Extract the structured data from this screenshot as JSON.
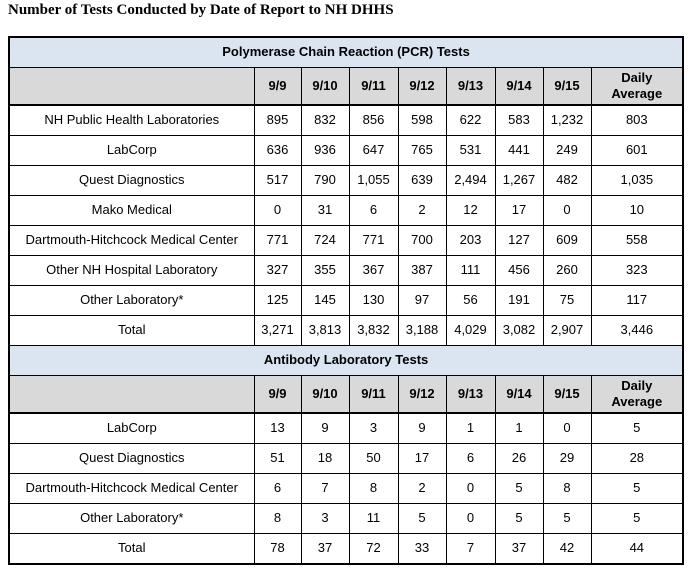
{
  "page_title": "Number of Tests Conducted by Date of Report to NH DHHS",
  "colors": {
    "section_header_bg": "#dbe5f1",
    "column_header_bg": "#d9d9d9",
    "border": "#000000",
    "text": "#000000"
  },
  "columns": [
    "9/9",
    "9/10",
    "9/11",
    "9/12",
    "9/13",
    "9/14",
    "9/15",
    "Daily Average"
  ],
  "sections": [
    {
      "title": "Polymerase Chain Reaction (PCR) Tests",
      "rows": [
        {
          "label": "NH Public Health Laboratories",
          "values": [
            "895",
            "832",
            "856",
            "598",
            "622",
            "583",
            "1,232",
            "803"
          ]
        },
        {
          "label": "LabCorp",
          "values": [
            "636",
            "936",
            "647",
            "765",
            "531",
            "441",
            "249",
            "601"
          ]
        },
        {
          "label": "Quest Diagnostics",
          "values": [
            "517",
            "790",
            "1,055",
            "639",
            "2,494",
            "1,267",
            "482",
            "1,035"
          ]
        },
        {
          "label": "Mako Medical",
          "values": [
            "0",
            "31",
            "6",
            "2",
            "12",
            "17",
            "0",
            "10"
          ]
        },
        {
          "label": "Dartmouth-Hitchcock Medical Center",
          "values": [
            "771",
            "724",
            "771",
            "700",
            "203",
            "127",
            "609",
            "558"
          ]
        },
        {
          "label": "Other NH Hospital Laboratory",
          "values": [
            "327",
            "355",
            "367",
            "387",
            "111",
            "456",
            "260",
            "323"
          ]
        },
        {
          "label": "Other Laboratory*",
          "values": [
            "125",
            "145",
            "130",
            "97",
            "56",
            "191",
            "75",
            "117"
          ]
        }
      ],
      "total": {
        "label": "Total",
        "values": [
          "3,271",
          "3,813",
          "3,832",
          "3,188",
          "4,029",
          "3,082",
          "2,907",
          "3,446"
        ]
      }
    },
    {
      "title": "Antibody Laboratory Tests",
      "rows": [
        {
          "label": "LabCorp",
          "values": [
            "13",
            "9",
            "3",
            "9",
            "1",
            "1",
            "0",
            "5"
          ]
        },
        {
          "label": "Quest Diagnostics",
          "values": [
            "51",
            "18",
            "50",
            "17",
            "6",
            "26",
            "29",
            "28"
          ]
        },
        {
          "label": "Dartmouth-Hitchcock Medical Center",
          "values": [
            "6",
            "7",
            "8",
            "2",
            "0",
            "5",
            "8",
            "5"
          ]
        },
        {
          "label": "Other Laboratory*",
          "values": [
            "8",
            "3",
            "11",
            "5",
            "0",
            "5",
            "5",
            "5"
          ]
        }
      ],
      "total": {
        "label": "Total",
        "values": [
          "78",
          "37",
          "72",
          "33",
          "7",
          "37",
          "42",
          "44"
        ]
      }
    }
  ]
}
